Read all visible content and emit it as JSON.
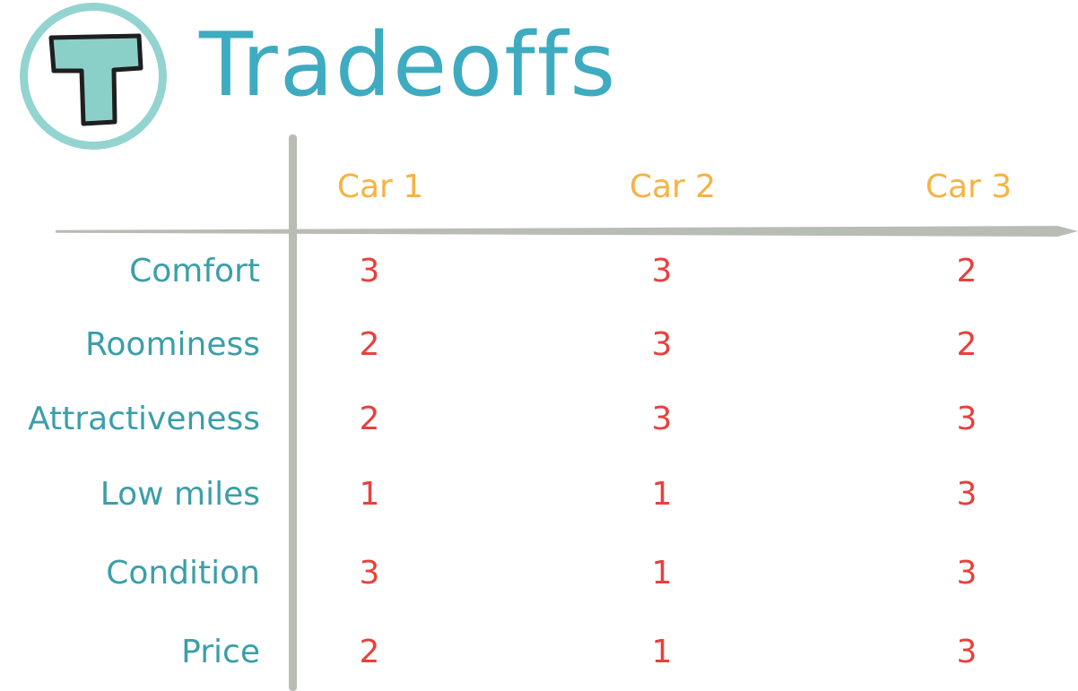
{
  "title": "Tradeoffs",
  "logo_letter": "T",
  "colors": {
    "title": "#3eabc1",
    "logo_ring": "#93d4d0",
    "logo_fill": "#8ad0c9",
    "column_header": "#f6b342",
    "row_label": "#3a9fa8",
    "value": "#e8403c",
    "grid_line": "#b9bcb4"
  },
  "columns": [
    "Car 1",
    "Car 2",
    "Car 3"
  ],
  "rows": [
    {
      "label": "Comfort",
      "values": [
        "3",
        "3",
        "2"
      ]
    },
    {
      "label": "Roominess",
      "values": [
        "2",
        "3",
        "2"
      ]
    },
    {
      "label": "Attractiveness",
      "values": [
        "2",
        "3",
        "3"
      ]
    },
    {
      "label": "Low miles",
      "values": [
        "1",
        "1",
        "3"
      ]
    },
    {
      "label": "Condition",
      "values": [
        "3",
        "1",
        "3"
      ]
    },
    {
      "label": "Price",
      "values": [
        "2",
        "1",
        "3"
      ]
    }
  ]
}
